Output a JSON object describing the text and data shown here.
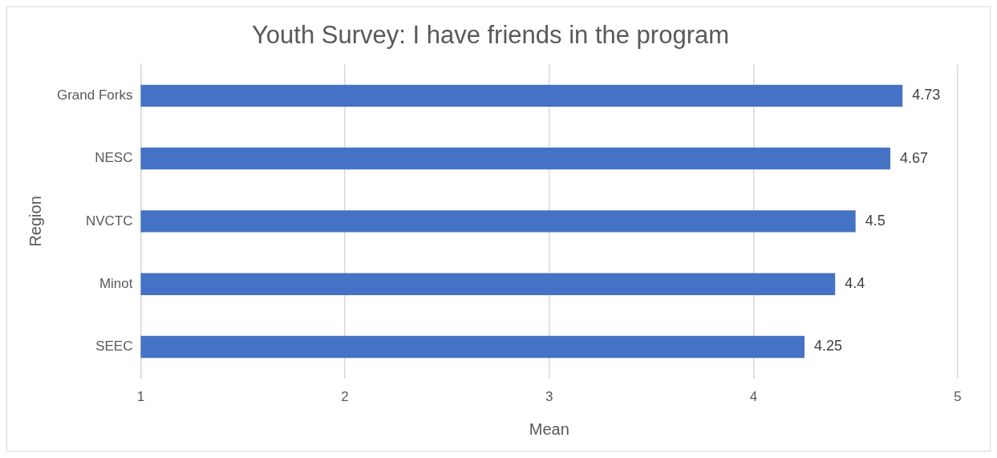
{
  "chart_data": {
    "type": "bar",
    "orientation": "horizontal",
    "title": "Youth Survey: I have friends in the program",
    "xlabel": "Mean",
    "ylabel": "Region",
    "categories": [
      "Grand Forks",
      "NESC",
      "NVCTC",
      "Minot",
      "SEEC"
    ],
    "values": [
      4.73,
      4.67,
      4.5,
      4.4,
      4.25
    ],
    "color": "#4472c4",
    "xlim": [
      1,
      5
    ],
    "xticks": [
      1,
      2,
      3,
      4,
      5
    ],
    "grid": "x",
    "data_labels": true,
    "legend": false
  }
}
